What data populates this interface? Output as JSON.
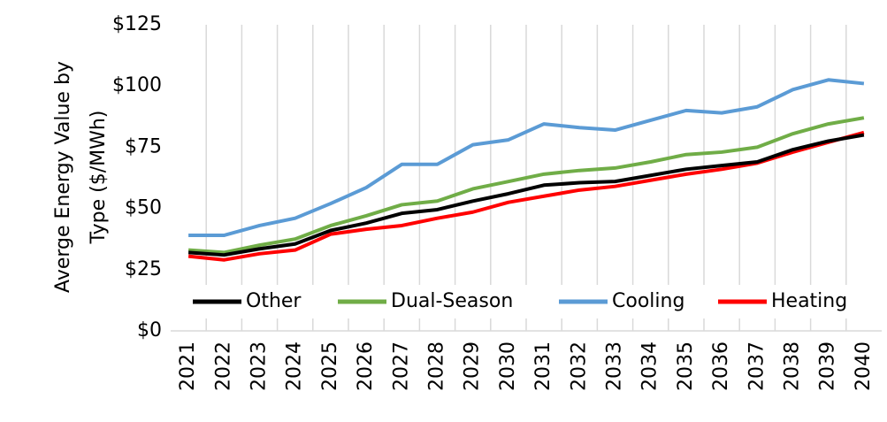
{
  "chart_data": {
    "type": "line",
    "ylabel": [
      "Averge Energy Value by",
      "Type ($/MWh)"
    ],
    "categories": [
      "2021",
      "2022",
      "2023",
      "2024",
      "2025",
      "2026",
      "2027",
      "2028",
      "2029",
      "2030",
      "2031",
      "2032",
      "2033",
      "2034",
      "2035",
      "2036",
      "2037",
      "2038",
      "2039",
      "2040"
    ],
    "series": [
      {
        "name": "Other",
        "color": "#000000",
        "values": [
          32,
          31,
          33.5,
          35.5,
          41,
          44,
          48,
          49.5,
          53,
          56,
          59.5,
          60.5,
          61,
          63.5,
          66,
          67.5,
          69,
          74,
          77.5,
          80
        ]
      },
      {
        "name": "Dual-Season",
        "color": "#70ad47",
        "values": [
          33,
          32,
          35,
          37.5,
          43,
          47,
          51.5,
          53,
          58,
          61,
          64,
          65.5,
          66.5,
          69,
          72,
          73,
          75,
          80.5,
          84.5,
          87
        ]
      },
      {
        "name": "Cooling",
        "color": "#5b9bd5",
        "values": [
          39,
          39,
          43,
          46,
          52,
          58.5,
          68,
          68,
          76,
          78,
          84.5,
          83,
          82,
          86,
          90,
          89,
          91.5,
          98.5,
          102.5,
          101
        ]
      },
      {
        "name": "Heating",
        "color": "#ff0000",
        "values": [
          30.5,
          29,
          31.5,
          33,
          39.5,
          41.5,
          43,
          46,
          48.5,
          52.5,
          55,
          57.5,
          59,
          61.5,
          64,
          66,
          68.5,
          73,
          77,
          81
        ]
      }
    ],
    "ylim": [
      0,
      125
    ],
    "yticks": [
      {
        "value": 0,
        "label": "$0"
      },
      {
        "value": 25,
        "label": "$25"
      },
      {
        "value": 50,
        "label": "$50"
      },
      {
        "value": 75,
        "label": "$75"
      },
      {
        "value": 100,
        "label": "$100"
      },
      {
        "value": 125,
        "label": "$125"
      }
    ],
    "grid": true,
    "legend": "bottom"
  }
}
